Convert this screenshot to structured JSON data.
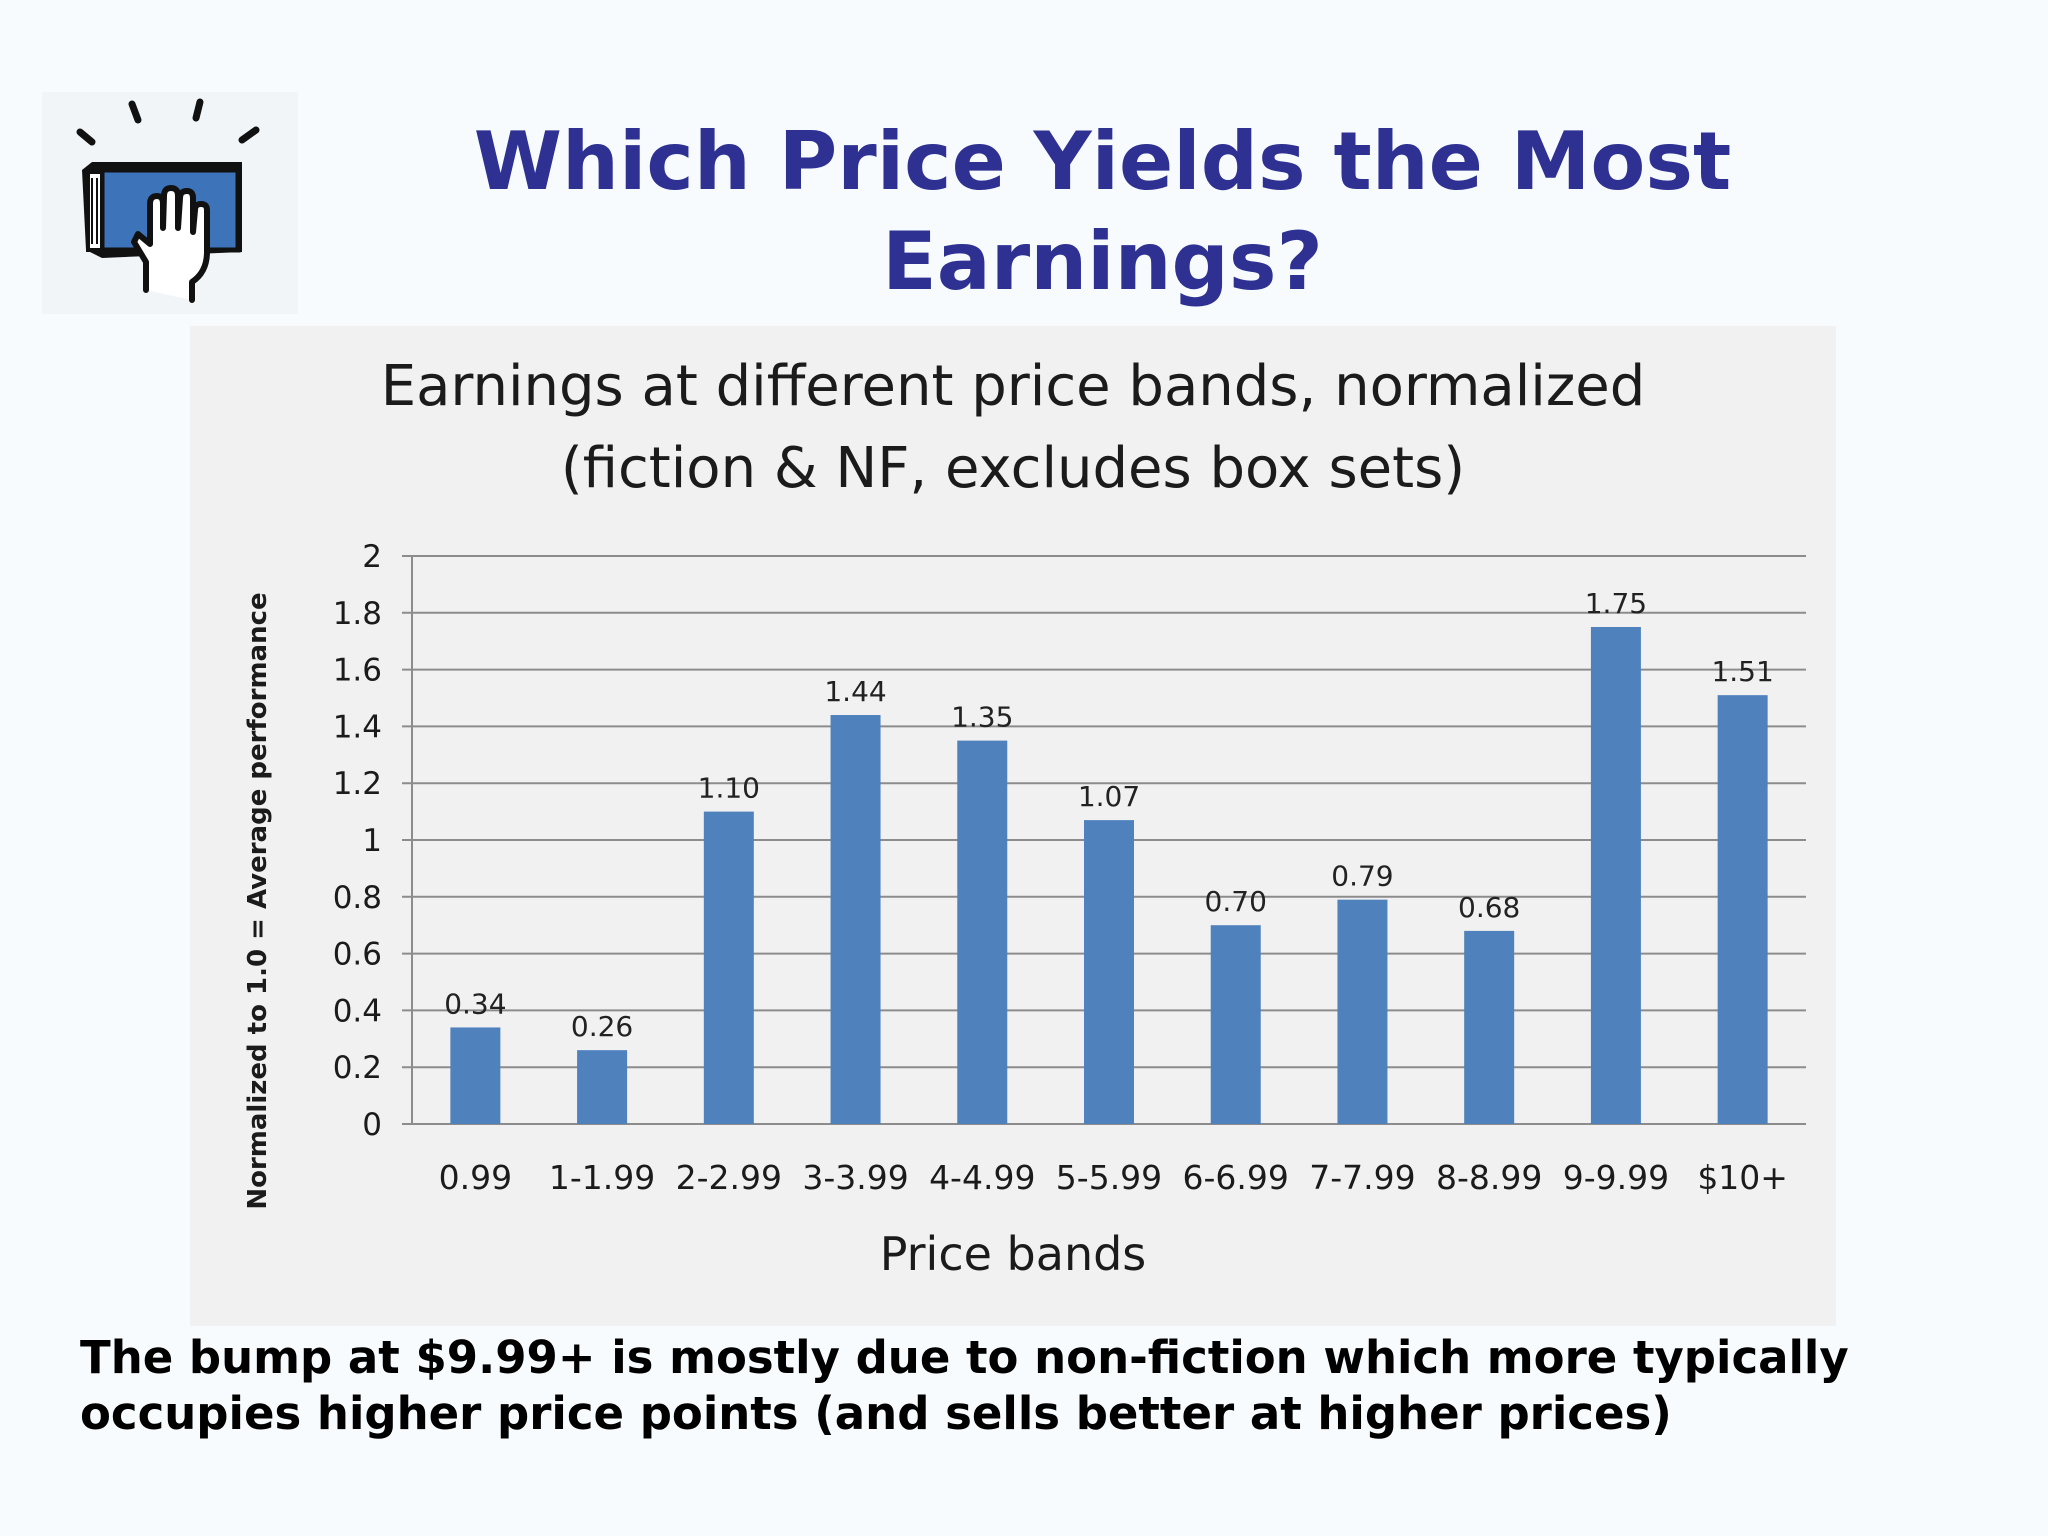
{
  "slide": {
    "title_line1": "Which Price Yields the Most",
    "title_line2": "Earnings?",
    "footnote_line1": "The bump at $9.99+ is mostly due to non-fiction which more typically",
    "footnote_line2": "occupies higher price points (and sells better at higher prices)",
    "logo_icon": "hand-on-book-icon"
  },
  "colors": {
    "title": "#2e3192",
    "bar": "#4f81bd",
    "gridline": "#8c8c8c",
    "panel": "#f2f1f1",
    "slide_background": "#f7fbfe",
    "logo_book": "#3d73b9"
  },
  "chart_data": {
    "type": "bar",
    "title_line1": "Earnings at different price bands, normalized",
    "title_line2": "(fiction & NF, excludes box sets)",
    "xlabel": "Price bands",
    "ylabel": "Normalized to 1.0 = Average performance",
    "categories": [
      "0.99",
      "1-1.99",
      "2-2.99",
      "3-3.99",
      "4-4.99",
      "5-5.99",
      "6-6.99",
      "7-7.99",
      "8-8.99",
      "9-9.99",
      "$10+"
    ],
    "values": [
      0.34,
      0.26,
      1.1,
      1.44,
      1.35,
      1.07,
      0.7,
      0.79,
      0.68,
      1.75,
      1.51
    ],
    "data_labels": [
      "0.34",
      "0.26",
      "1.10",
      "1.44",
      "1.35",
      "1.07",
      "0.70",
      "0.79",
      "0.68",
      "1.75",
      "1.51"
    ],
    "ylim": [
      0,
      2
    ],
    "yticks": [
      0,
      0.2,
      0.4,
      0.6,
      0.8,
      1,
      1.2,
      1.4,
      1.6,
      1.8,
      2
    ],
    "ytick_labels": [
      "0",
      "0.2",
      "0.4",
      "0.6",
      "0.8",
      "1",
      "1.2",
      "1.4",
      "1.6",
      "1.8",
      "2"
    ],
    "grid": true,
    "legend": false
  }
}
